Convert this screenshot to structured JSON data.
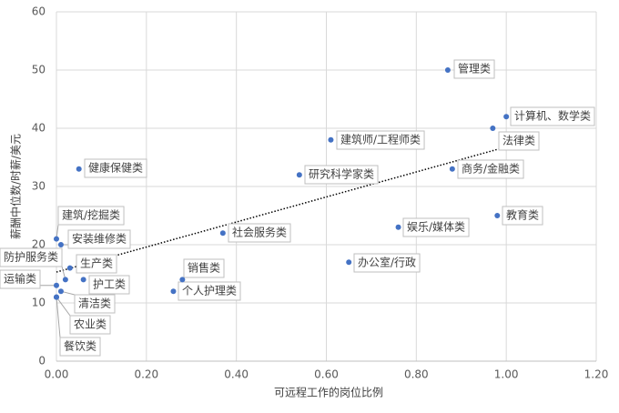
{
  "chart_data": {
    "type": "scatter",
    "x_label": "可远程工作的岗位比例",
    "y_label": "薪酬中位数/时薪/美元",
    "color": "#4472c4",
    "grid": true,
    "xlim": [
      0,
      1.2
    ],
    "ylim": [
      0,
      60
    ],
    "xticks": [
      {
        "value": 0,
        "label": "0.00"
      },
      {
        "value": 0.2,
        "label": "0.20"
      },
      {
        "value": 0.4,
        "label": "0.40"
      },
      {
        "value": 0.6,
        "label": "0.60"
      },
      {
        "value": 0.8,
        "label": "0.80"
      },
      {
        "value": 1,
        "label": "1.00"
      },
      {
        "value": 1.2,
        "label": "1.20"
      }
    ],
    "yticks": [
      0,
      10,
      20,
      30,
      40,
      50,
      60
    ],
    "labels": [
      "管理类",
      "计算机、数学类",
      "法律类",
      "建筑师/工程师类",
      "研究科学家类",
      "商务/金融类",
      "健康保健类",
      "教育类",
      "娱乐/媒体类",
      "社会服务类",
      "办公室/行政",
      "销售类",
      "个人护理类",
      "建筑/挖掘类",
      "安装维修类",
      "生产类",
      "防护服务类",
      "护工类",
      "运输类",
      "清洁类",
      "农业类",
      "餐饮类"
    ],
    "x": [
      0.87,
      1.0,
      0.97,
      0.61,
      0.54,
      0.88,
      0.05,
      0.98,
      0.76,
      0.37,
      0.65,
      0.28,
      0.26,
      0.0,
      0.01,
      0.03,
      0.02,
      0.06,
      0.0,
      0.01,
      0.0,
      0.0
    ],
    "y": [
      50,
      42,
      40,
      38,
      32,
      33,
      33,
      25,
      23,
      22,
      17,
      14,
      12,
      21,
      20,
      16,
      14,
      14,
      13,
      12,
      11,
      11
    ],
    "trendline": {
      "x": [
        0,
        1
      ],
      "y": [
        15.3,
        36.8
      ]
    }
  }
}
